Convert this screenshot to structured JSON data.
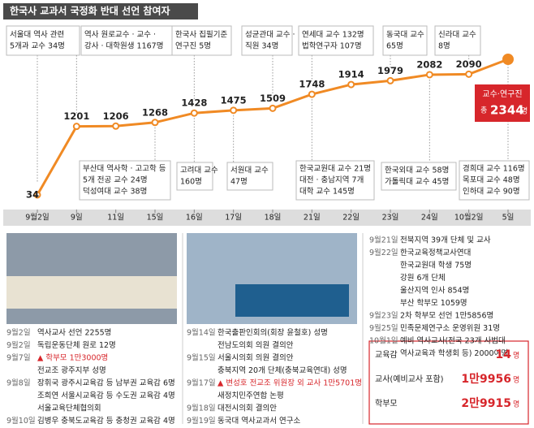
{
  "chart_data": {
    "type": "line",
    "title": "한국사 교과서 국정화 반대 선언 참여자",
    "categories": [
      "9월2일",
      "9일",
      "11일",
      "15일",
      "16일",
      "17일",
      "18일",
      "21일",
      "22일",
      "23일",
      "24일",
      "10월2일",
      "5일"
    ],
    "values": [
      34,
      1201,
      1206,
      1268,
      1428,
      1475,
      1509,
      1748,
      1914,
      1979,
      2082,
      2090,
      2344
    ],
    "color": "#f08a24",
    "callout": {
      "title": "교수·연구진",
      "prefix": "총",
      "unit": "명"
    },
    "annotations_top": [
      {
        "lines": [
          "서울대 역사 관련",
          "5개과 교수 34명"
        ]
      },
      {
        "lines": [
          "역사 원로교수 · 교수 ·",
          "강사 · 대학원생 1167명"
        ]
      },
      {
        "lines": [
          "한국사 집필기준",
          "연구진 5명"
        ]
      },
      {
        "lines": [
          "성균관대 교수 ·",
          "직원 34명"
        ]
      },
      {
        "lines": [
          "연세대 교수 132명",
          "법학연구자 107명"
        ]
      },
      {
        "lines": [
          "동국대 교수",
          "65명"
        ]
      },
      {
        "lines": [
          "신라대 교수",
          "8명"
        ]
      }
    ],
    "annotations_bottom": [
      {
        "lines": [
          "부산대 역사학 · 고고학 등",
          "5개 전공 교수      24명",
          "덕성여대 교수        38명"
        ]
      },
      {
        "lines": [
          "고려대 교수",
          "160명"
        ]
      },
      {
        "lines": [
          "서원대 교수",
          "47명"
        ]
      },
      {
        "lines": [
          "한국교원대 교수 21명",
          "대전 · 충남지역 7개",
          "대학 교수 145명"
        ]
      },
      {
        "lines": [
          "한국외대 교수 58명",
          "가톨릭대 교수 45명"
        ]
      },
      {
        "lines": [
          "경희대 교수     116명",
          "목포대 교수     48명",
          "인하대 교수     90명"
        ]
      }
    ]
  },
  "timeline": {
    "columns": [
      [
        {
          "date": "9월2일",
          "text": "역사교사 선언 2255명"
        },
        {
          "date": "9월2일",
          "text": "독립운동단체 원로 12명"
        },
        {
          "date": "9월7일",
          "text": "▲ 학부모 1만3000명",
          "highlight": true
        },
        {
          "text": "전교조 광주지부 성명"
        },
        {
          "date": "9월8일",
          "text": "장휘국 광주시교육감 등 남부권 교육감 6명"
        },
        {
          "text": "조희연 서울시교육감 등 수도권 교육감 4명"
        },
        {
          "text": "서울교육단체협의회"
        },
        {
          "date": "9월10일",
          "text": "김병우 충북도교육감 등 충청권 교육감 4명"
        }
      ],
      [
        {
          "date": "9월14일",
          "text": "한국출판인회의(회장 윤철호) 성명"
        },
        {
          "text": "전남도의회 의원 결의안"
        },
        {
          "date": "9월15일",
          "text": "서울시의회 의원 결의안"
        },
        {
          "text": "충북지역 20개 단체(충북교육연대) 성명"
        },
        {
          "date": "9월17일",
          "text": "▲ 변성호 전교조 위원장 외 교사 1만5701명",
          "highlight": true
        },
        {
          "text": "새정치민주연합 논평"
        },
        {
          "date": "9월18일",
          "text": "대전시의회 결의안"
        },
        {
          "date": "9월19일",
          "text": "동국대 역사교과서 연구소"
        }
      ],
      [
        {
          "date": "9월21일",
          "text": "전북지역 39개 단체 및 교사"
        },
        {
          "date": "9월22일",
          "text": "한국교육정책교사연대"
        },
        {
          "text": "한국교원대 학생 75명"
        },
        {
          "text": "강원 6개 단체"
        },
        {
          "text": "울산지역 인사 854명"
        },
        {
          "text": "부산 학부모 1059명"
        },
        {
          "date": "9월23일",
          "text": "2차 학부모 선언 1만5856명"
        },
        {
          "date": "9월25일",
          "text": "민족문제연구소 운영위원 31명"
        },
        {
          "date": "10월1일",
          "text": "예비 역사교사(전국 23개 사범대"
        },
        {
          "text": "역사교육과 학생회 등) 2000여명"
        }
      ]
    ]
  },
  "summary": [
    {
      "label": "교육감",
      "value": "14",
      "unit": "명"
    },
    {
      "label": "교사(예비교사 포함)",
      "value": "1만9956",
      "unit": "명"
    },
    {
      "label": "학부모",
      "value": "2만9915",
      "unit": "명"
    }
  ]
}
